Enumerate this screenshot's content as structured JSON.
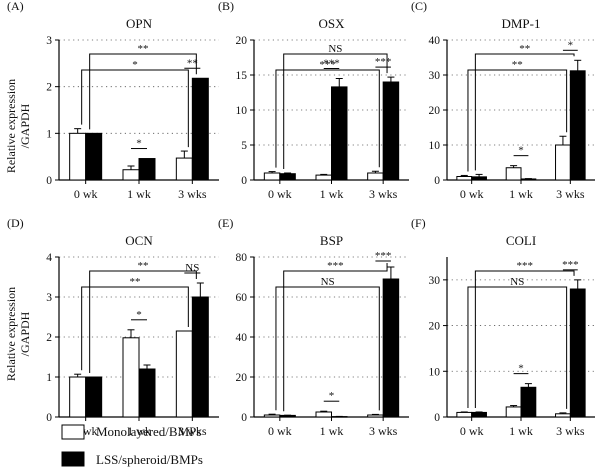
{
  "figure": {
    "ylabel_line1": "Relative expression",
    "ylabel_line2": "/GAPDH"
  },
  "legend": {
    "items": [
      {
        "label": "Monolayered/BMPs",
        "color": "#ffffff"
      },
      {
        "label": "LSS/spheroid/BMPs",
        "color": "#000000"
      }
    ]
  },
  "chart_data": [
    {
      "type": "bar",
      "panel": "(A)",
      "title": "OPN",
      "categories": [
        "0 wk",
        "1 wk",
        "3 wks"
      ],
      "ylim": [
        0,
        3
      ],
      "yticks": [
        0,
        1,
        2,
        3
      ],
      "grid": "dotted",
      "series": [
        {
          "name": "Monolayered/BMPs",
          "color": "#ffffff",
          "values": [
            1.0,
            0.22,
            0.47
          ],
          "errors": [
            0.1,
            0.08,
            0.15
          ]
        },
        {
          "name": "LSS/spheroid/BMPs",
          "color": "#000000",
          "values": [
            1.0,
            0.46,
            2.18
          ],
          "errors": [
            0.0,
            0.0,
            0.0
          ]
        }
      ],
      "annotations": [
        {
          "type": "pair",
          "group": 1,
          "label": "*"
        },
        {
          "type": "pair",
          "group": 2,
          "label": "**"
        },
        {
          "type": "bracket",
          "from": 0,
          "to": 2,
          "level": 1,
          "label": "*"
        },
        {
          "type": "bracket",
          "from": 0,
          "to": 2,
          "level": 2,
          "label": "**"
        }
      ]
    },
    {
      "type": "bar",
      "panel": "(B)",
      "title": "OSX",
      "categories": [
        "0 wk",
        "1 wk",
        "3 wks"
      ],
      "ylim": [
        0,
        20
      ],
      "yticks": [
        0,
        5,
        10,
        15,
        20
      ],
      "grid": "dotted",
      "series": [
        {
          "name": "Monolayered/BMPs",
          "color": "#ffffff",
          "values": [
            1.0,
            0.7,
            1.0
          ],
          "errors": [
            0.2,
            0.1,
            0.25
          ]
        },
        {
          "name": "LSS/spheroid/BMPs",
          "color": "#000000",
          "values": [
            0.9,
            13.3,
            14.0
          ],
          "errors": [
            0.1,
            1.2,
            0.7
          ]
        }
      ],
      "annotations": [
        {
          "type": "pair",
          "group": 1,
          "label": "***"
        },
        {
          "type": "pair",
          "group": 2,
          "label": "***"
        },
        {
          "type": "bracket",
          "from": 0,
          "to": 2,
          "level": 1,
          "label": "***"
        },
        {
          "type": "bracket",
          "from": 0,
          "to": 2,
          "level": 2,
          "label": "NS"
        }
      ]
    },
    {
      "type": "bar",
      "panel": "(C)",
      "title": "DMP-1",
      "categories": [
        "0 wk",
        "1 wk",
        "3 wks"
      ],
      "ylim": [
        0,
        40
      ],
      "yticks": [
        0,
        10,
        20,
        30,
        40
      ],
      "grid": "dotted",
      "series": [
        {
          "name": "Monolayered/BMPs",
          "color": "#ffffff",
          "values": [
            1.0,
            3.5,
            10.0
          ],
          "errors": [
            0.3,
            0.6,
            2.5
          ]
        },
        {
          "name": "LSS/spheroid/BMPs",
          "color": "#000000",
          "values": [
            0.9,
            0.3,
            31.2
          ],
          "errors": [
            0.7,
            0.1,
            3.0
          ]
        }
      ],
      "annotations": [
        {
          "type": "pair",
          "group": 1,
          "label": "*"
        },
        {
          "type": "pair",
          "group": 2,
          "label": "*"
        },
        {
          "type": "bracket",
          "from": 0,
          "to": 2,
          "level": 1,
          "label": "**"
        },
        {
          "type": "bracket",
          "from": 0,
          "to": 2,
          "level": 2,
          "label": "**"
        }
      ]
    },
    {
      "type": "bar",
      "panel": "(D)",
      "title": "OCN",
      "categories": [
        "0 wk",
        "1 wk",
        "3 wks"
      ],
      "ylim": [
        0,
        4
      ],
      "yticks": [
        0,
        1,
        2,
        3,
        4
      ],
      "grid": "dotted",
      "series": [
        {
          "name": "Monolayered/BMPs",
          "color": "#ffffff",
          "values": [
            1.0,
            1.98,
            2.15
          ],
          "errors": [
            0.07,
            0.2,
            0.0
          ]
        },
        {
          "name": "LSS/spheroid/BMPs",
          "color": "#000000",
          "values": [
            1.0,
            1.2,
            3.0
          ],
          "errors": [
            0.0,
            0.1,
            0.35
          ]
        }
      ],
      "annotations": [
        {
          "type": "pair",
          "group": 1,
          "label": "*"
        },
        {
          "type": "pair",
          "group": 2,
          "label": "NS"
        },
        {
          "type": "bracket",
          "from": 0,
          "to": 2,
          "level": 1,
          "label": "**"
        },
        {
          "type": "bracket",
          "from": 0,
          "to": 2,
          "level": 2,
          "label": "**"
        }
      ]
    },
    {
      "type": "bar",
      "panel": "(E)",
      "title": "BSP",
      "categories": [
        "0 wk",
        "1 wk",
        "3 wks"
      ],
      "ylim": [
        0,
        80
      ],
      "yticks": [
        0,
        20,
        40,
        60,
        80
      ],
      "grid": "dotted",
      "series": [
        {
          "name": "Monolayered/BMPs",
          "color": "#ffffff",
          "values": [
            1.0,
            2.5,
            1.0
          ],
          "errors": [
            0.4,
            0.4,
            0.3
          ]
        },
        {
          "name": "LSS/spheroid/BMPs",
          "color": "#000000",
          "values": [
            0.8,
            0.2,
            69.0
          ],
          "errors": [
            0.1,
            0.1,
            6.0
          ]
        }
      ],
      "annotations": [
        {
          "type": "pair",
          "group": 1,
          "label": "*"
        },
        {
          "type": "pair",
          "group": 2,
          "label": "***"
        },
        {
          "type": "bracket",
          "from": 0,
          "to": 2,
          "level": 1,
          "label": "NS"
        },
        {
          "type": "bracket",
          "from": 0,
          "to": 2,
          "level": 2,
          "label": "***"
        }
      ]
    },
    {
      "type": "bar",
      "panel": "(F)",
      "title": "COLI",
      "categories": [
        "0 wk",
        "1 wk",
        "3 wks"
      ],
      "ylim": [
        0,
        35
      ],
      "yticks": [
        0,
        10,
        20,
        30
      ],
      "grid": "dotted",
      "series": [
        {
          "name": "Monolayered/BMPs",
          "color": "#ffffff",
          "values": [
            1.0,
            2.2,
            0.7
          ],
          "errors": [
            0.1,
            0.3,
            0.2
          ]
        },
        {
          "name": "LSS/spheroid/BMPs",
          "color": "#000000",
          "values": [
            1.0,
            6.5,
            28.0
          ],
          "errors": [
            0.1,
            0.8,
            2.0
          ]
        }
      ],
      "annotations": [
        {
          "type": "pair",
          "group": 1,
          "label": "*"
        },
        {
          "type": "pair",
          "group": 2,
          "label": "***"
        },
        {
          "type": "bracket",
          "from": 0,
          "to": 2,
          "level": 1,
          "label": "NS"
        },
        {
          "type": "bracket",
          "from": 0,
          "to": 2,
          "level": 2,
          "label": "***"
        }
      ]
    }
  ]
}
